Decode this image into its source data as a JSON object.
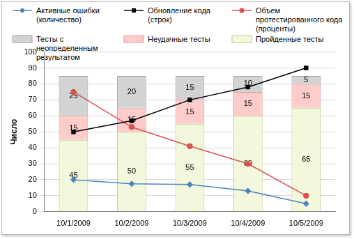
{
  "chart_data": {
    "type": "bar",
    "ylabel": "Число",
    "categories": [
      "10/1/2009",
      "10/2/2009",
      "10/3/2009",
      "10/4/2009",
      "10/5/2009"
    ],
    "ylim": [
      0,
      100
    ],
    "yticks": [
      0,
      10,
      20,
      30,
      40,
      50,
      60,
      70,
      80,
      90,
      100
    ],
    "grid": true,
    "stacked": true,
    "legend": "top",
    "series": [
      {
        "name": "Активные ошибки (количество)",
        "type": "line",
        "color": "#4f81bd",
        "marker": "diamond",
        "line_style": "solid",
        "values": [
          20,
          17.5,
          17,
          13,
          5
        ]
      },
      {
        "name": "Обновление кода (строк)",
        "type": "line",
        "color": "#000000",
        "marker": "square",
        "line_style": "solid",
        "values": [
          50,
          57,
          70,
          78,
          90
        ]
      },
      {
        "name": "Объем протестированного кода (проценты)",
        "type": "line",
        "color": "#d9534f",
        "marker": "circle",
        "line_style": "solid",
        "values": [
          75,
          53,
          41,
          30,
          10
        ]
      },
      {
        "name": "Тесты с неопределенным результатом",
        "type": "bar",
        "color": "#d3d3d3",
        "data_labels": true,
        "values": [
          25,
          20,
          15,
          10,
          5
        ]
      },
      {
        "name": "Неудачные тесты",
        "type": "bar",
        "color": "#ffcccc",
        "data_labels": true,
        "values": [
          15,
          15,
          15,
          15,
          15
        ]
      },
      {
        "name": "Пройденные тесты",
        "type": "bar",
        "color": "#f1f8dc",
        "data_labels": true,
        "values": [
          45,
          50,
          55,
          60,
          65
        ]
      }
    ]
  }
}
